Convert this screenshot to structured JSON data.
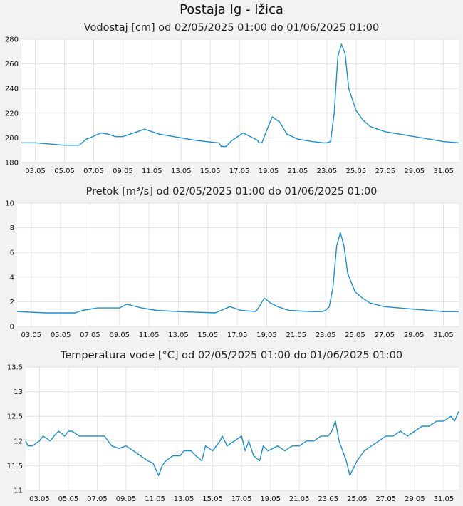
{
  "page": {
    "title": "Postaja Ig - Ižica"
  },
  "chart_data": [
    {
      "type": "line",
      "title": "Vodostaj [cm] od 02/05/2025 01:00 do 01/06/2025 01:00",
      "xlabel": "",
      "ylabel": "",
      "ylim": [
        180,
        280
      ],
      "yticks": [
        "180",
        "200",
        "220",
        "240",
        "260",
        "280"
      ],
      "xlim": [
        "2025-05-02 01:00",
        "2025-06-01 01:00"
      ],
      "xticks": [
        "03.05",
        "05.05",
        "07.05",
        "09.05",
        "11.05",
        "13.05",
        "15.05",
        "17.05",
        "19.05",
        "21.05",
        "23.05",
        "25.05",
        "27.05",
        "29.05",
        "31.05"
      ],
      "grid": true,
      "color": "#1a8fd0",
      "series": [
        {
          "x": [
            "2025-05-02 01:00",
            "2025-05-03 00:00",
            "2025-05-04 00:00",
            "2025-05-05 00:00",
            "2025-05-05 12:00",
            "2025-05-06 00:00",
            "2025-05-06 12:00",
            "2025-05-06 18:00",
            "2025-05-07 03:00",
            "2025-05-07 12:00",
            "2025-05-08 00:00",
            "2025-05-08 12:00",
            "2025-05-09 00:00",
            "2025-05-09 12:00",
            "2025-05-10 12:00",
            "2025-05-11 12:00",
            "2025-05-13 00:00",
            "2025-05-14 00:00",
            "2025-05-15 12:00",
            "2025-05-15 14:00",
            "2025-05-15 18:00",
            "2025-05-16 02:00",
            "2025-05-16 12:00",
            "2025-05-17 06:00",
            "2025-05-18 06:00",
            "2025-05-18 08:00",
            "2025-05-18 13:00",
            "2025-05-18 20:00",
            "2025-05-19 06:00",
            "2025-05-19 18:00",
            "2025-05-20 06:00",
            "2025-05-21 00:00",
            "2025-05-22 00:00",
            "2025-05-22 18:00",
            "2025-05-23 00:00",
            "2025-05-23 06:00",
            "2025-05-23 12:00",
            "2025-05-23 18:00",
            "2025-05-24 00:00",
            "2025-05-24 06:00",
            "2025-05-24 12:00",
            "2025-05-25 00:00",
            "2025-05-25 12:00",
            "2025-05-26 00:00",
            "2025-05-27 00:00",
            "2025-05-28 00:00",
            "2025-05-29 00:00",
            "2025-05-30 00:00",
            "2025-05-31 00:00",
            "2025-06-01 01:00"
          ],
          "y": [
            196,
            196,
            195,
            194,
            194,
            194,
            199,
            200,
            202,
            204,
            203,
            201,
            201,
            203,
            207,
            203,
            200,
            198,
            196,
            196,
            193,
            193,
            198,
            204,
            198,
            196,
            196,
            205,
            217,
            213,
            203,
            199,
            197,
            196,
            196,
            197,
            220,
            266,
            276,
            268,
            240,
            222,
            214,
            209,
            205,
            203,
            201,
            199,
            197,
            196
          ]
        }
      ]
    },
    {
      "type": "line",
      "title": "Pretok [m³/s] od 02/05/2025 01:00 do 01/06/2025 01:00",
      "xlabel": "",
      "ylabel": "",
      "ylim": [
        0,
        10
      ],
      "yticks": [
        "0",
        "2",
        "4",
        "6",
        "8",
        "10"
      ],
      "xlim": [
        "2025-05-02 01:00",
        "2025-06-01 01:00"
      ],
      "xticks": [
        "03.05",
        "05.05",
        "07.05",
        "09.05",
        "11.05",
        "13.05",
        "15.05",
        "17.05",
        "19.05",
        "21.05",
        "23.05",
        "25.05",
        "27.05",
        "29.05",
        "31.05"
      ],
      "grid": true,
      "color": "#1a8fd0",
      "series": [
        {
          "x": [
            "2025-05-02 01:00",
            "2025-05-04 00:00",
            "2025-05-05 00:00",
            "2025-05-06 00:00",
            "2025-05-06 12:00",
            "2025-05-07 00:00",
            "2025-05-07 12:00",
            "2025-05-08 12:00",
            "2025-05-09 00:00",
            "2025-05-09 12:00",
            "2025-05-10 12:00",
            "2025-05-11 12:00",
            "2025-05-13 00:00",
            "2025-05-15 12:00",
            "2025-05-16 12:00",
            "2025-05-17 06:00",
            "2025-05-18 06:00",
            "2025-05-18 12:00",
            "2025-05-18 20:00",
            "2025-05-19 06:00",
            "2025-05-19 18:00",
            "2025-05-20 12:00",
            "2025-05-22 00:00",
            "2025-05-22 18:00",
            "2025-05-23 00:00",
            "2025-05-23 06:00",
            "2025-05-23 12:00",
            "2025-05-23 18:00",
            "2025-05-24 00:00",
            "2025-05-24 06:00",
            "2025-05-24 12:00",
            "2025-05-25 00:00",
            "2025-05-25 12:00",
            "2025-05-26 00:00",
            "2025-05-27 00:00",
            "2025-05-28 00:00",
            "2025-05-29 00:00",
            "2025-05-30 00:00",
            "2025-05-31 00:00",
            "2025-06-01 01:00"
          ],
          "y": [
            1.2,
            1.1,
            1.1,
            1.1,
            1.3,
            1.4,
            1.5,
            1.5,
            1.5,
            1.8,
            1.5,
            1.3,
            1.2,
            1.1,
            1.6,
            1.3,
            1.2,
            1.6,
            2.3,
            1.9,
            1.6,
            1.3,
            1.2,
            1.2,
            1.3,
            1.6,
            3.2,
            6.5,
            7.6,
            6.5,
            4.3,
            2.8,
            2.3,
            1.9,
            1.6,
            1.5,
            1.4,
            1.3,
            1.2,
            1.2
          ]
        }
      ]
    },
    {
      "type": "line",
      "title": "Temperatura vode [°C] od 02/05/2025 01:00 do 01/06/2025 01:00",
      "xlabel": "",
      "ylabel": "",
      "ylim": [
        11,
        13.5
      ],
      "yticks": [
        "11",
        "11.5",
        "12",
        "12.5",
        "13",
        "13.5"
      ],
      "xlim": [
        "2025-05-02 01:00",
        "2025-06-01 01:00"
      ],
      "xticks": [
        "03.05",
        "05.05",
        "07.05",
        "09.05",
        "11.05",
        "13.05",
        "15.05",
        "17.05",
        "19.05",
        "21.05",
        "23.05",
        "25.05",
        "27.05",
        "29.05",
        "31.05"
      ],
      "grid": true,
      "color": "#1a8fd0",
      "series": [
        {
          "x": [
            "2025-05-02 01:00",
            "2025-05-02 05:00",
            "2025-05-02 12:00",
            "2025-05-03 00:00",
            "2025-05-03 06:00",
            "2025-05-03 18:00",
            "2025-05-04 00:00",
            "2025-05-04 08:00",
            "2025-05-04 18:00",
            "2025-05-05 00:00",
            "2025-05-05 06:00",
            "2025-05-05 18:00",
            "2025-05-06 12:00",
            "2025-05-07 00:00",
            "2025-05-07 12:00",
            "2025-05-08 00:00",
            "2025-05-08 12:00",
            "2025-05-09 00:00",
            "2025-05-09 12:00",
            "2025-05-10 00:00",
            "2025-05-10 12:00",
            "2025-05-10 21:00",
            "2025-05-11 06:00",
            "2025-05-11 12:00",
            "2025-05-11 18:00",
            "2025-05-12 06:00",
            "2025-05-12 18:00",
            "2025-05-13 00:00",
            "2025-05-13 12:00",
            "2025-05-13 20:00",
            "2025-05-14 06:00",
            "2025-05-14 12:00",
            "2025-05-15 00:00",
            "2025-05-15 12:00",
            "2025-05-15 16:00",
            "2025-05-16 00:00",
            "2025-05-16 12:00",
            "2025-05-17 00:00",
            "2025-05-17 06:00",
            "2025-05-17 12:00",
            "2025-05-17 20:00",
            "2025-05-18 06:00",
            "2025-05-18 12:00",
            "2025-05-18 20:00",
            "2025-05-19 12:00",
            "2025-05-20 00:00",
            "2025-05-20 12:00",
            "2025-05-21 00:00",
            "2025-05-21 12:00",
            "2025-05-22 00:00",
            "2025-05-22 12:00",
            "2025-05-23 00:00",
            "2025-05-23 06:00",
            "2025-05-23 12:00",
            "2025-05-23 18:00",
            "2025-05-24 06:00",
            "2025-05-24 12:00",
            "2025-05-25 00:00",
            "2025-05-25 12:00",
            "2025-05-26 00:00",
            "2025-05-26 12:00",
            "2025-05-27 00:00",
            "2025-05-27 12:00",
            "2025-05-28 00:00",
            "2025-05-28 12:00",
            "2025-05-29 00:00",
            "2025-05-29 12:00",
            "2025-05-30 00:00",
            "2025-05-30 12:00",
            "2025-05-31 00:00",
            "2025-05-31 12:00",
            "2025-05-31 18:00",
            "2025-06-01 01:00"
          ],
          "y": [
            12.0,
            11.9,
            11.9,
            12.0,
            12.1,
            12.0,
            12.1,
            12.2,
            12.1,
            12.2,
            12.2,
            12.1,
            12.1,
            12.1,
            12.1,
            11.9,
            11.85,
            11.9,
            11.8,
            11.7,
            11.6,
            11.55,
            11.3,
            11.5,
            11.6,
            11.7,
            11.7,
            11.8,
            11.8,
            11.7,
            11.6,
            11.9,
            11.8,
            12.0,
            12.1,
            11.9,
            12.0,
            12.1,
            11.8,
            12.0,
            11.7,
            11.6,
            11.9,
            11.8,
            11.9,
            11.8,
            11.9,
            11.9,
            12.0,
            12.0,
            12.1,
            12.1,
            12.2,
            12.4,
            12.0,
            11.6,
            11.3,
            11.6,
            11.8,
            11.9,
            12.0,
            12.1,
            12.1,
            12.2,
            12.1,
            12.2,
            12.3,
            12.3,
            12.4,
            12.4,
            12.5,
            12.4,
            12.6
          ]
        }
      ]
    }
  ]
}
